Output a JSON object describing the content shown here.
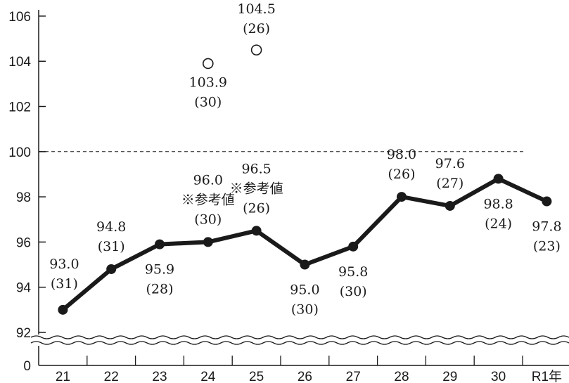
{
  "chart_data": {
    "type": "line",
    "categories": [
      "21",
      "22",
      "23",
      "24",
      "25",
      "26",
      "27",
      "28",
      "29",
      "30",
      "R1年"
    ],
    "y_ticks": [
      "106",
      "104",
      "102",
      "100",
      "98",
      "96",
      "94",
      "92",
      "0"
    ],
    "ylim": [
      92,
      106
    ],
    "axis_break": true,
    "reference_line": {
      "value": 100,
      "style": "dashed"
    },
    "series": [
      {
        "marker": "filled-circle",
        "points": [
          {
            "x": "21",
            "value": 93.0,
            "label": "93.0",
            "sub": "(31)"
          },
          {
            "x": "22",
            "value": 94.8,
            "label": "94.8",
            "sub": "(31)"
          },
          {
            "x": "23",
            "value": 95.9,
            "label": "95.9",
            "sub": "(28)"
          },
          {
            "x": "24",
            "value": 96.0,
            "label": "96.0",
            "note": "※参考値",
            "sub": "(30)"
          },
          {
            "x": "25",
            "value": 96.5,
            "label": "96.5",
            "note": "※参考値",
            "sub": "(26)"
          },
          {
            "x": "26",
            "value": 95.0,
            "label": "95.0",
            "sub": "(30)"
          },
          {
            "x": "27",
            "value": 95.8,
            "label": "95.8",
            "sub": "(30)"
          },
          {
            "x": "28",
            "value": 98.0,
            "label": "98.0",
            "sub": "(26)"
          },
          {
            "x": "29",
            "value": 97.6,
            "label": "97.6",
            "sub": "(27)"
          },
          {
            "x": "30",
            "value": 98.8,
            "label": "98.8",
            "sub": "(24)"
          },
          {
            "x": "R1年",
            "value": 97.8,
            "label": "97.8",
            "sub": "(23)"
          }
        ]
      },
      {
        "marker": "open-circle",
        "points": [
          {
            "x": "24",
            "value": 103.9,
            "label": "103.9",
            "sub": "(30)"
          },
          {
            "x": "25",
            "value": 104.5,
            "label": "104.5",
            "sub": "(26)"
          }
        ]
      }
    ],
    "colors": {
      "line": "#1a1a1a",
      "background": "#ffffff"
    }
  }
}
